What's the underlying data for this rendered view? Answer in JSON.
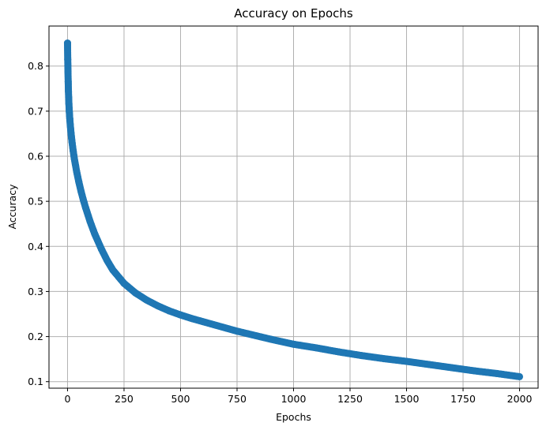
{
  "chart_data": {
    "type": "line",
    "title": "Accuracy on Epochs",
    "xlabel": "Epochs",
    "ylabel": "Accuracy",
    "xlim": [
      -82,
      2082
    ],
    "ylim": [
      0.0855,
      0.8888
    ],
    "xticks": [
      0,
      250,
      500,
      750,
      1000,
      1250,
      1500,
      1750,
      2000
    ],
    "yticks": [
      0.1,
      0.2,
      0.3,
      0.4,
      0.5,
      0.6,
      0.7,
      0.8
    ],
    "xtick_labels": [
      "0",
      "250",
      "500",
      "750",
      "1000",
      "1250",
      "1500",
      "1750",
      "2000"
    ],
    "ytick_labels": [
      "0.1",
      "0.2",
      "0.3",
      "0.4",
      "0.5",
      "0.6",
      "0.7",
      "0.8"
    ],
    "grid": true,
    "legend": null,
    "series": [
      {
        "marker": "circle",
        "color": "#1f77b4",
        "x": [
          0,
          1,
          2,
          3,
          4,
          5,
          6,
          7,
          8,
          9,
          10,
          12,
          14,
          16,
          18,
          20,
          25,
          30,
          40,
          50,
          60,
          70,
          80,
          100,
          120,
          150,
          175,
          200,
          250,
          300,
          350,
          400,
          450,
          500,
          550,
          600,
          650,
          700,
          750,
          800,
          900,
          1000,
          1100,
          1200,
          1300,
          1400,
          1500,
          1600,
          1700,
          1800,
          1900,
          2000
        ],
        "y": [
          0.851,
          0.815,
          0.788,
          0.765,
          0.745,
          0.73,
          0.717,
          0.707,
          0.698,
          0.69,
          0.683,
          0.67,
          0.659,
          0.649,
          0.64,
          0.631,
          0.612,
          0.595,
          0.567,
          0.543,
          0.522,
          0.503,
          0.486,
          0.455,
          0.428,
          0.394,
          0.369,
          0.348,
          0.318,
          0.297,
          0.281,
          0.268,
          0.257,
          0.248,
          0.24,
          0.233,
          0.226,
          0.219,
          0.212,
          0.206,
          0.194,
          0.183,
          0.175,
          0.166,
          0.158,
          0.151,
          0.145,
          0.138,
          0.131,
          0.124,
          0.118,
          0.111
        ]
      }
    ],
    "colors": {
      "series": "#1f77b4",
      "grid": "#b0b0b0",
      "axes": "#000000"
    }
  }
}
